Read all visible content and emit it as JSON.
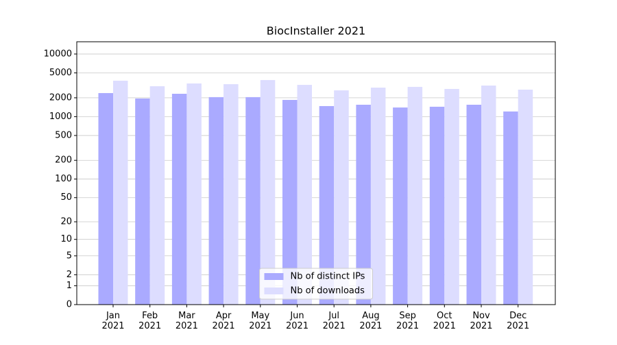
{
  "chart_data": {
    "type": "bar",
    "title": "BiocInstaller 2021",
    "categories": [
      "Jan\n2021",
      "Feb\n2021",
      "Mar\n2021",
      "Apr\n2021",
      "May\n2021",
      "Jun\n2021",
      "Jul\n2021",
      "Aug\n2021",
      "Sep\n2021",
      "Oct\n2021",
      "Nov\n2021",
      "Dec\n2021"
    ],
    "series": [
      {
        "name": "Nb of distinct IPs",
        "color": "#aaaaff",
        "values": [
          2380,
          1950,
          2320,
          2050,
          2050,
          1850,
          1475,
          1550,
          1400,
          1440,
          1550,
          1210
        ]
      },
      {
        "name": "Nb of downloads",
        "color": "#ddddff",
        "values": [
          3750,
          3060,
          3390,
          3300,
          3840,
          3220,
          2630,
          2910,
          2990,
          2770,
          3140,
          2700
        ]
      }
    ],
    "yscale": "log1p",
    "ylim": [
      0,
      15700
    ],
    "yticks": [
      0,
      1,
      2,
      5,
      10,
      20,
      50,
      100,
      200,
      500,
      1000,
      2000,
      5000,
      10000
    ],
    "grid": true,
    "legend": "lower center"
  }
}
